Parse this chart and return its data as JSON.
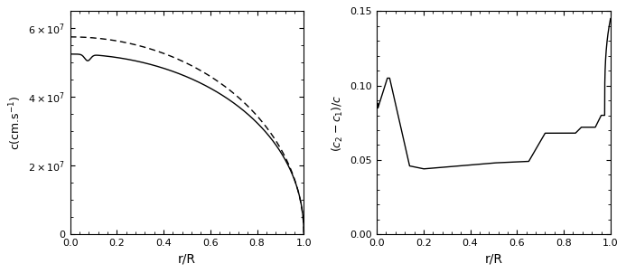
{
  "left_ylabel": "c(cm.s$^{-1}$)",
  "right_ylabel": "$(c_2-c_1)/c$",
  "xlabel": "r/R",
  "left_ylim": [
    0,
    65000000.0
  ],
  "left_xlim": [
    0.0,
    1.0
  ],
  "right_ylim": [
    0.0,
    0.15
  ],
  "right_xlim": [
    0.0,
    1.0
  ],
  "left_yticks": [
    0,
    20000000.0,
    40000000.0,
    60000000.0
  ],
  "left_xticks": [
    0.0,
    0.2,
    0.4,
    0.6,
    0.8,
    1.0
  ],
  "right_yticks": [
    0.0,
    0.05,
    0.1,
    0.15
  ],
  "right_xticks": [
    0.0,
    0.2,
    0.4,
    0.6,
    0.8,
    1.0
  ],
  "line_color": "#000000",
  "bg_color": "#ffffff",
  "linewidth": 1.0
}
